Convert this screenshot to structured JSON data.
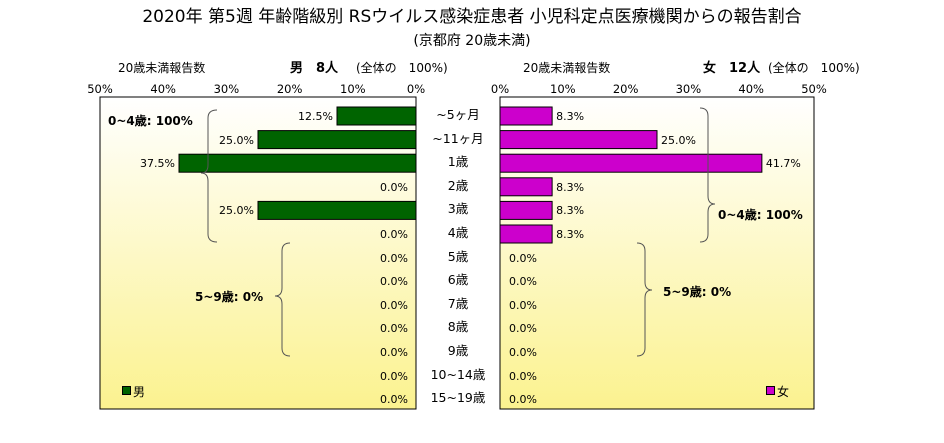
{
  "title": "2020年 第5週 年齢階級別 RSウイルス感染症患者 小児科定点医療機関からの報告割合",
  "subtitle": "(京都府 20歳未満)",
  "left_header": {
    "report_label": "20歳未満報告数",
    "sex_count": "男　8人",
    "total_note": "(全体の　100%)"
  },
  "right_header": {
    "report_label": "20歳未満報告数",
    "sex_count": "女　12人",
    "total_note": "(全体の　100%)"
  },
  "colors": {
    "male": "#006400",
    "female": "#cc00cc",
    "plot_bg_top": "#ffffff",
    "plot_bg_bottom": "#fbf28f"
  },
  "legend": {
    "male": "男",
    "female": "女"
  },
  "chart_data": {
    "type": "bar",
    "orientation": "horizontal",
    "layout": "population-pyramid",
    "categories": [
      "~5ヶ月",
      "~11ヶ月",
      "1歳",
      "2歳",
      "3歳",
      "4歳",
      "5歳",
      "6歳",
      "7歳",
      "8歳",
      "9歳",
      "10~14歳",
      "15~19歳"
    ],
    "x_ticks": [
      "50%",
      "40%",
      "30%",
      "20%",
      "10%",
      "0%"
    ],
    "x_ticks_right": [
      "0%",
      "10%",
      "20%",
      "30%",
      "40%",
      "50%"
    ],
    "xlim": [
      0,
      50
    ],
    "series": [
      {
        "name": "男",
        "side": "left",
        "values": [
          12.5,
          25.0,
          37.5,
          0.0,
          25.0,
          0.0,
          0.0,
          0.0,
          0.0,
          0.0,
          0.0,
          0.0,
          0.0
        ],
        "labels": [
          "12.5%",
          "25.0%",
          "37.5%",
          "0.0%",
          "25.0%",
          "0.0%",
          "0.0%",
          "0.0%",
          "0.0%",
          "0.0%",
          "0.0%",
          "0.0%",
          "0.0%"
        ]
      },
      {
        "name": "女",
        "side": "right",
        "values": [
          8.3,
          25.0,
          41.7,
          8.3,
          8.3,
          8.3,
          0.0,
          0.0,
          0.0,
          0.0,
          0.0,
          0.0,
          0.0
        ],
        "labels": [
          "8.3%",
          "25.0%",
          "41.7%",
          "8.3%",
          "8.3%",
          "8.3%",
          "0.0%",
          "0.0%",
          "0.0%",
          "0.0%",
          "0.0%",
          "0.0%",
          "0.0%"
        ]
      }
    ],
    "annotations": {
      "male_0_4": "0~4歳: 100%",
      "male_5_9": "5~9歳: 0%",
      "female_0_4": "0~4歳: 100%",
      "female_5_9": "5~9歳: 0%"
    }
  }
}
